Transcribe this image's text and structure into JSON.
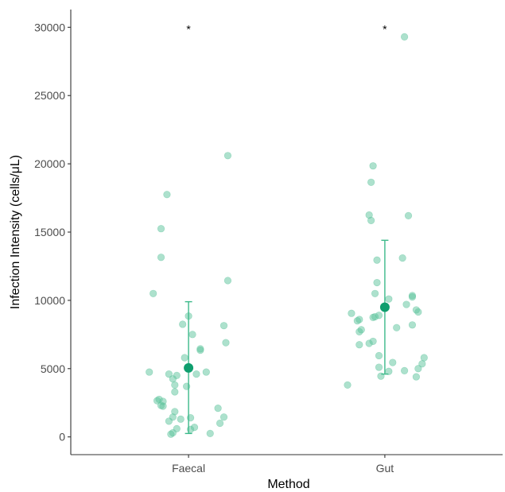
{
  "chart_data": {
    "type": "scatter",
    "xlabel": "Method",
    "ylabel": "Infection Intensity (cells/μL)",
    "categories": [
      "Faecal",
      "Gut"
    ],
    "ylim": [
      -1300,
      31300
    ],
    "yticks": [
      0,
      5000,
      10000,
      15000,
      20000,
      25000,
      30000
    ],
    "grid": false,
    "legend": "none",
    "point_color": "#5bc49b",
    "mean_color": "#0f9e6e",
    "errorbar_color": "#3cb98a",
    "series": [
      {
        "category": "Faecal",
        "mean": 5050,
        "ci": [
          250,
          9900
        ],
        "significance": "*",
        "points": [
          {
            "x": 0.8,
            "y": 4750
          },
          {
            "x": 0.82,
            "y": 10500
          },
          {
            "x": 0.84,
            "y": 2650
          },
          {
            "x": 0.85,
            "y": 2750
          },
          {
            "x": 0.86,
            "y": 2300
          },
          {
            "x": 0.86,
            "y": 15250
          },
          {
            "x": 0.86,
            "y": 13150
          },
          {
            "x": 0.87,
            "y": 2250
          },
          {
            "x": 0.87,
            "y": 2600
          },
          {
            "x": 0.89,
            "y": 17750
          },
          {
            "x": 0.9,
            "y": 4600
          },
          {
            "x": 0.9,
            "y": 1150
          },
          {
            "x": 0.91,
            "y": 200
          },
          {
            "x": 0.92,
            "y": 4250
          },
          {
            "x": 0.92,
            "y": 1450
          },
          {
            "x": 0.92,
            "y": 300
          },
          {
            "x": 0.93,
            "y": 3800
          },
          {
            "x": 0.93,
            "y": 3300
          },
          {
            "x": 0.93,
            "y": 1850
          },
          {
            "x": 0.94,
            "y": 600
          },
          {
            "x": 0.94,
            "y": 4500
          },
          {
            "x": 0.96,
            "y": 1300
          },
          {
            "x": 0.97,
            "y": 8250
          },
          {
            "x": 0.98,
            "y": 5800
          },
          {
            "x": 0.99,
            "y": 3700
          },
          {
            "x": 1.0,
            "y": 8850
          },
          {
            "x": 1.01,
            "y": 550
          },
          {
            "x": 1.01,
            "y": 1400
          },
          {
            "x": 1.02,
            "y": 7500
          },
          {
            "x": 1.03,
            "y": 700
          },
          {
            "x": 1.04,
            "y": 4600
          },
          {
            "x": 1.06,
            "y": 6350
          },
          {
            "x": 1.06,
            "y": 6450
          },
          {
            "x": 1.09,
            "y": 4750
          },
          {
            "x": 1.11,
            "y": 250
          },
          {
            "x": 1.15,
            "y": 2100
          },
          {
            "x": 1.16,
            "y": 1000
          },
          {
            "x": 1.18,
            "y": 8150
          },
          {
            "x": 1.18,
            "y": 1450
          },
          {
            "x": 1.19,
            "y": 6900
          },
          {
            "x": 1.2,
            "y": 20600
          },
          {
            "x": 1.2,
            "y": 11450
          }
        ]
      },
      {
        "category": "Gut",
        "mean": 9500,
        "ci": [
          4600,
          14400
        ],
        "significance": "*",
        "points": [
          {
            "x": 1.81,
            "y": 3800
          },
          {
            "x": 1.83,
            "y": 9050
          },
          {
            "x": 1.86,
            "y": 8500
          },
          {
            "x": 1.87,
            "y": 8600
          },
          {
            "x": 1.87,
            "y": 7700
          },
          {
            "x": 1.87,
            "y": 6750
          },
          {
            "x": 1.88,
            "y": 7850
          },
          {
            "x": 1.92,
            "y": 16250
          },
          {
            "x": 1.92,
            "y": 6850
          },
          {
            "x": 1.93,
            "y": 15850
          },
          {
            "x": 1.93,
            "y": 18650
          },
          {
            "x": 1.94,
            "y": 19850
          },
          {
            "x": 1.94,
            "y": 7000
          },
          {
            "x": 1.94,
            "y": 8750
          },
          {
            "x": 1.95,
            "y": 10500
          },
          {
            "x": 1.95,
            "y": 8800
          },
          {
            "x": 1.96,
            "y": 11300
          },
          {
            "x": 1.96,
            "y": 12950
          },
          {
            "x": 1.97,
            "y": 5950
          },
          {
            "x": 1.97,
            "y": 5100
          },
          {
            "x": 1.97,
            "y": 8900
          },
          {
            "x": 1.98,
            "y": 4450
          },
          {
            "x": 2.02,
            "y": 10100
          },
          {
            "x": 2.02,
            "y": 4800
          },
          {
            "x": 2.04,
            "y": 5450
          },
          {
            "x": 2.06,
            "y": 8000
          },
          {
            "x": 2.09,
            "y": 13100
          },
          {
            "x": 2.1,
            "y": 29300
          },
          {
            "x": 2.1,
            "y": 4850
          },
          {
            "x": 2.11,
            "y": 9700
          },
          {
            "x": 2.12,
            "y": 16200
          },
          {
            "x": 2.14,
            "y": 10250
          },
          {
            "x": 2.14,
            "y": 10350
          },
          {
            "x": 2.14,
            "y": 8200
          },
          {
            "x": 2.16,
            "y": 9300
          },
          {
            "x": 2.16,
            "y": 4400
          },
          {
            "x": 2.17,
            "y": 9150
          },
          {
            "x": 2.17,
            "y": 5000
          },
          {
            "x": 2.19,
            "y": 5350
          },
          {
            "x": 2.2,
            "y": 5800
          }
        ]
      }
    ]
  }
}
